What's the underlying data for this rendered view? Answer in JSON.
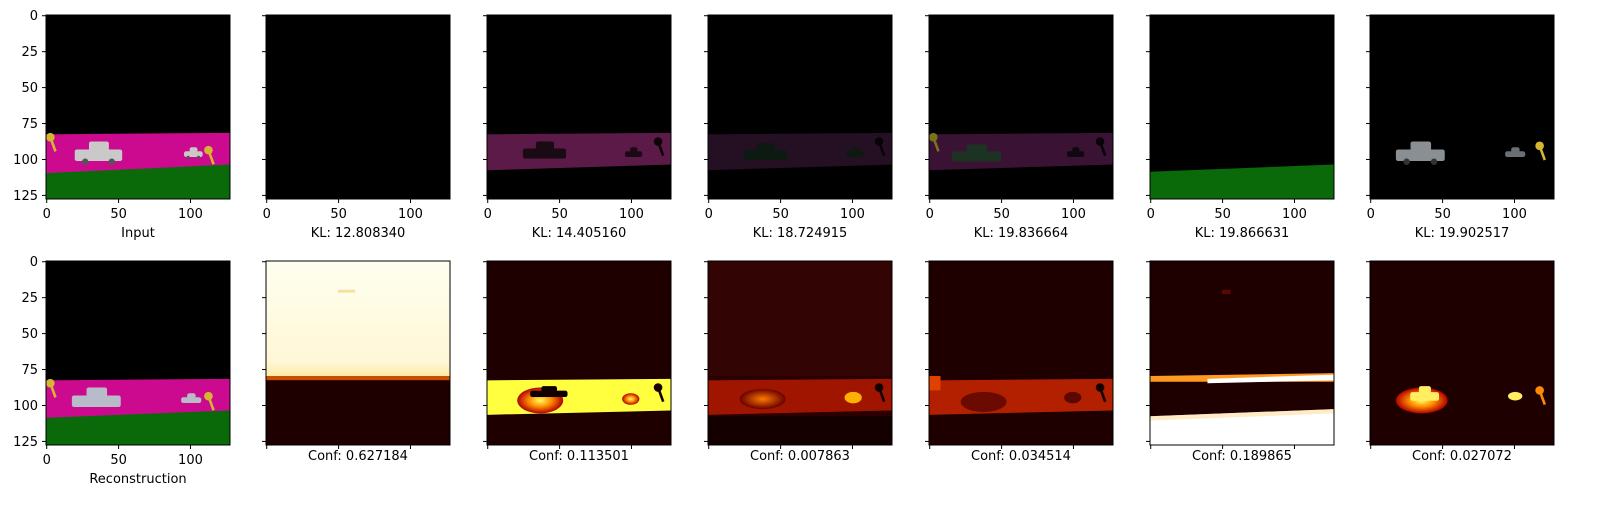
{
  "chart_data": {
    "type": "image_grid",
    "image_extent": [
      0,
      128
    ],
    "xticks": [
      0,
      50,
      100
    ],
    "yticks": [
      0,
      25,
      50,
      75,
      100,
      125
    ],
    "colors": {
      "background": "#000000",
      "magenta": "#cc0a8f",
      "green": "#0a6a0a",
      "car": "#c9c9c9",
      "key": "#d6b630",
      "heat_low": "#1e0000",
      "heat_high": "#ffffff"
    },
    "rows": [
      {
        "panels": [
          {
            "kind": "input",
            "caption": "Input"
          },
          {
            "kind": "slot_empty",
            "caption": "KL: 12.808340"
          },
          {
            "kind": "slot_magenta",
            "caption": "KL: 14.405160"
          },
          {
            "kind": "slot_dim",
            "caption": "KL: 18.724915"
          },
          {
            "kind": "slot_dim2",
            "caption": "KL: 19.836664"
          },
          {
            "kind": "slot_green",
            "caption": "KL: 19.866631"
          },
          {
            "kind": "slot_objects",
            "caption": "KL: 19.902517"
          }
        ]
      },
      {
        "panels": [
          {
            "kind": "recon",
            "caption": "Reconstruction"
          },
          {
            "kind": "conf_sky",
            "caption": "Conf: 0.627184"
          },
          {
            "kind": "conf_band_yellow",
            "caption": "Conf: 0.113501"
          },
          {
            "kind": "conf_band_red",
            "caption": "Conf: 0.007863"
          },
          {
            "kind": "conf_band_red2",
            "caption": "Conf: 0.034514"
          },
          {
            "kind": "conf_ground",
            "caption": "Conf: 0.189865"
          },
          {
            "kind": "conf_objects",
            "caption": "Conf: 0.027072"
          }
        ]
      }
    ]
  }
}
